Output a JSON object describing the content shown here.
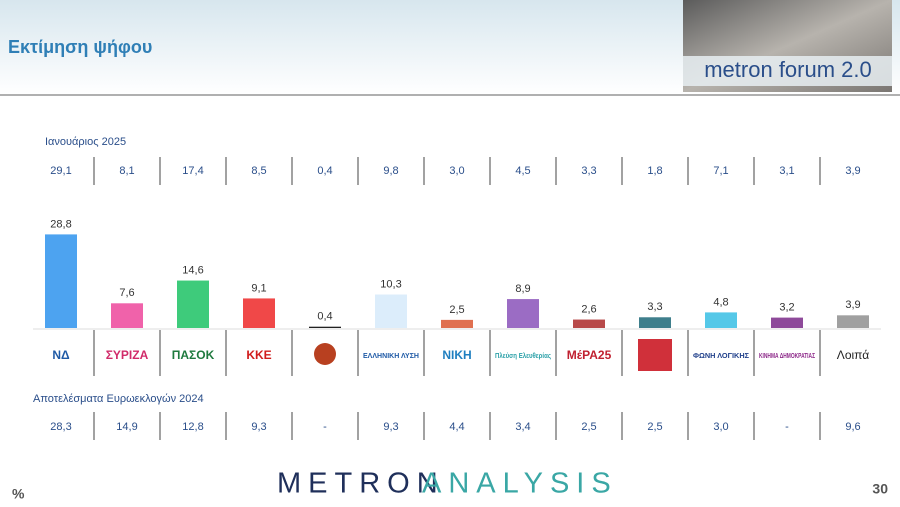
{
  "header": {
    "title": "Εκτίμηση ψήφου",
    "badge": "metron forum 2.0"
  },
  "table": {
    "top_label": "Ιανουάριος 2025",
    "top_row": [
      "29,1",
      "8,1",
      "17,4",
      "8,5",
      "0,4",
      "9,8",
      "3,0",
      "4,5",
      "3,3",
      "1,8",
      "7,1",
      "3,1",
      "3,9"
    ],
    "bottom_label": "Αποτελέσματα Ευρωεκλογών 2024",
    "bottom_row": [
      "28,3",
      "14,9",
      "12,8",
      "9,3",
      "-",
      "9,3",
      "4,4",
      "3,4",
      "2,5",
      "2,5",
      "3,0",
      "-",
      "9,6"
    ]
  },
  "chart_data": {
    "type": "bar",
    "categories": [
      "ΝΔ",
      "ΣΥΡΙΖΑ",
      "ΠΑΣΟΚ",
      "ΚΚΕ",
      null,
      "ΕΛΛΗΝΙΚΗ ΛΥΣΗ",
      "ΝΙΚΗ",
      "Πλεύση Ελευθερίας",
      "ΜέΡΑ25",
      null,
      "ΦΩΝΗ ΛΟΓΙΚΗΣ",
      "ΚΙΝΗΜΑ ΔΗΜΟΚΡΑΤΙΑΣ",
      "Λοιπά"
    ],
    "values": [
      28.8,
      7.6,
      14.6,
      9.1,
      0.4,
      10.3,
      2.5,
      8.9,
      2.6,
      3.3,
      4.8,
      3.2,
      3.9
    ],
    "value_labels": [
      "28,8",
      "7,6",
      "14,6",
      "9,1",
      "0,4",
      "10,3",
      "2,5",
      "8,9",
      "2,6",
      "3,3",
      "4,8",
      "3,2",
      "3,9"
    ],
    "colors": [
      "#4da3f0",
      "#f062aa",
      "#3ecb7b",
      "#f04848",
      "#222222",
      "#dcedfb",
      "#e07050",
      "#9b6cc4",
      "#b84a4a",
      "#3f7f8c",
      "#55c8e8",
      "#8e4a9a",
      "#a0a0a0"
    ]
  },
  "footer": {
    "logo_a": "METRON",
    "logo_b": "ANALYSIS",
    "unit": "%",
    "page": "30"
  }
}
